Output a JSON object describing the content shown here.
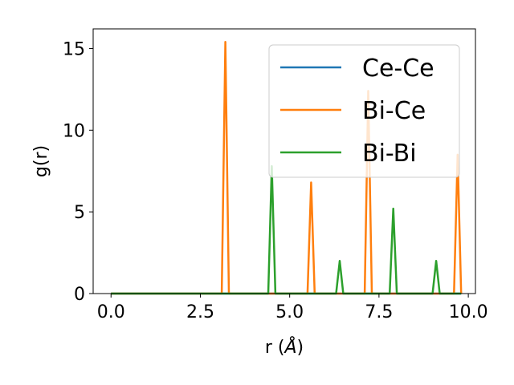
{
  "chart_data": {
    "type": "line",
    "title": "",
    "xlabel": "r (",
    "xlabel_symbol": "Å",
    "xlabel_close": ")",
    "ylabel": "g(r)",
    "xlim": [
      -0.5,
      10.2
    ],
    "ylim": [
      0,
      16.2
    ],
    "x_ticks": [
      0,
      2.5,
      5,
      7.5,
      10
    ],
    "x_tick_labels": [
      "0.0",
      "2.5",
      "5.0",
      "7.5",
      "10.0"
    ],
    "y_ticks": [
      0,
      5,
      10,
      15
    ],
    "y_tick_labels": [
      "0",
      "5",
      "10",
      "15"
    ],
    "grid": false,
    "legend_position": "top-right",
    "series": [
      {
        "name": "Ce-Ce",
        "color": "#1f77b4",
        "points": [
          [
            0,
            0
          ],
          [
            9.8,
            0
          ]
        ]
      },
      {
        "name": "Bi-Ce",
        "color": "#ff7f0e",
        "points": [
          [
            0,
            0
          ],
          [
            3.1,
            0
          ],
          [
            3.2,
            15.4
          ],
          [
            3.3,
            0
          ],
          [
            5.5,
            0
          ],
          [
            5.6,
            6.8
          ],
          [
            5.7,
            0
          ],
          [
            7.1,
            0
          ],
          [
            7.2,
            12.4
          ],
          [
            7.3,
            0
          ],
          [
            9.6,
            0
          ],
          [
            9.7,
            8.5
          ],
          [
            9.8,
            0
          ]
        ]
      },
      {
        "name": "Bi-Bi",
        "color": "#2ca02c",
        "points": [
          [
            0,
            0
          ],
          [
            4.4,
            0
          ],
          [
            4.5,
            7.8
          ],
          [
            4.6,
            0
          ],
          [
            6.3,
            0
          ],
          [
            6.4,
            2.0
          ],
          [
            6.5,
            0
          ],
          [
            7.8,
            0
          ],
          [
            7.9,
            5.2
          ],
          [
            8.0,
            0
          ],
          [
            9.0,
            0
          ],
          [
            9.1,
            2.0
          ],
          [
            9.2,
            0
          ],
          [
            9.8,
            0
          ]
        ]
      }
    ]
  }
}
